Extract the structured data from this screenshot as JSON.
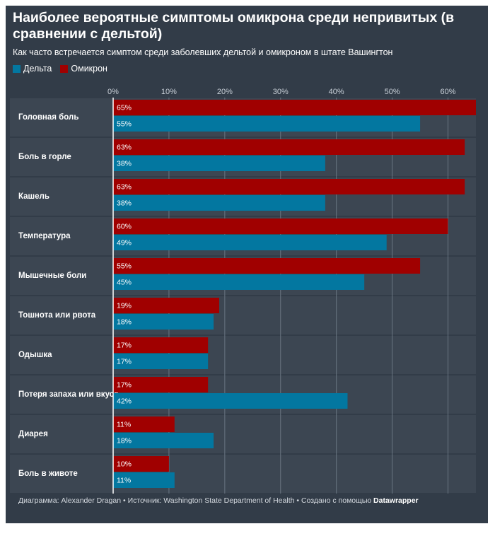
{
  "colors": {
    "background": "#323c48",
    "row_band": "#3c4652",
    "gridline": "#697582",
    "delta": "#0377a0",
    "omicron": "#a00000"
  },
  "header": {
    "title": "Наиболее вероятные симптомы омикрона среди непривитых (в сравнении с дельтой)",
    "subtitle": "Как часто встречается симптом среди заболевших дельтой и омикроном в штате Вашингтон"
  },
  "legend": [
    {
      "label": "Дельта",
      "color": "#0377a0"
    },
    {
      "label": "Омикрон",
      "color": "#a00000"
    }
  ],
  "footer": {
    "text": "Диаграмма: Alexander Dragan • Источник: Washington State Department of Health • Создано с помощью",
    "brand": "Datawrapper"
  },
  "chart_data": {
    "type": "bar",
    "orientation": "horizontal",
    "xlim": [
      0,
      65
    ],
    "ticks": [
      0,
      10,
      20,
      30,
      40,
      50,
      60
    ],
    "tick_labels": [
      "0%",
      "10%",
      "20%",
      "30%",
      "40%",
      "50%",
      "60%"
    ],
    "grid": true,
    "legend_position": "top-left",
    "categories": [
      "Головная боль",
      "Боль в горле",
      "Кашель",
      "Температура",
      "Мышечные боли",
      "Тошнота или рвота",
      "Одышка",
      "Потеря запаха или вкуса",
      "Диарея",
      "Боль в животе"
    ],
    "series": [
      {
        "name": "Омикрон",
        "color": "#a00000",
        "values": [
          65,
          63,
          63,
          60,
          55,
          19,
          17,
          17,
          11,
          10
        ],
        "labels": [
          "65%",
          "63%",
          "63%",
          "60%",
          "55%",
          "19%",
          "17%",
          "17%",
          "11%",
          "10%"
        ]
      },
      {
        "name": "Дельта",
        "color": "#0377a0",
        "values": [
          55,
          38,
          38,
          49,
          45,
          18,
          17,
          42,
          18,
          11
        ],
        "labels": [
          "55%",
          "38%",
          "38%",
          "49%",
          "45%",
          "18%",
          "17%",
          "42%",
          "18%",
          "11%"
        ]
      }
    ]
  }
}
